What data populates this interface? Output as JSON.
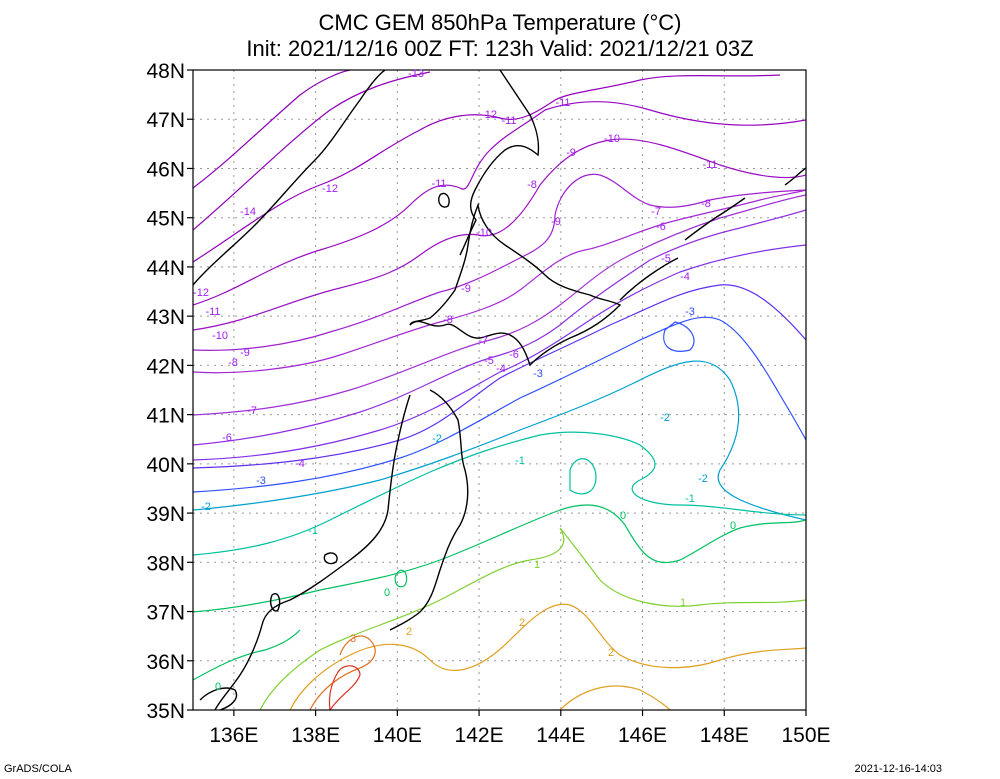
{
  "title": {
    "line1": "CMC GEM 850hPa Temperature (°C)",
    "line2": "Init: 2021/12/16 00Z  FT: 123h  Valid: 2021/12/21 03Z"
  },
  "footer": {
    "left": "GrADS/COLA",
    "right": "2021-12-16-14:03"
  },
  "axes": {
    "lat_labels": [
      "48N",
      "47N",
      "46N",
      "45N",
      "44N",
      "43N",
      "42N",
      "41N",
      "40N",
      "39N",
      "38N",
      "37N",
      "36N",
      "35N"
    ],
    "lon_labels": [
      "136E",
      "138E",
      "140E",
      "142E",
      "144E",
      "146E",
      "148E",
      "150E"
    ]
  },
  "contour_labels": [
    {
      "text": "-13",
      "c": "#a020f0"
    },
    {
      "text": "-11",
      "c": "#a020f0"
    },
    {
      "text": "-12",
      "c": "#a020f0"
    },
    {
      "text": "-11",
      "c": "#a020f0"
    },
    {
      "text": "-10",
      "c": "#a020f0"
    },
    {
      "text": "-9",
      "c": "#a020f0"
    },
    {
      "text": "-11",
      "c": "#a020f0"
    },
    {
      "text": "-8",
      "c": "#a020f0"
    },
    {
      "text": "-12",
      "c": "#a020f0"
    },
    {
      "text": "-11",
      "c": "#a020f0"
    },
    {
      "text": "-14",
      "c": "#a020f0"
    },
    {
      "text": "-9",
      "c": "#a020f0"
    },
    {
      "text": "-7",
      "c": "#a020f0"
    },
    {
      "text": "-8",
      "c": "#a020f0"
    },
    {
      "text": "-6",
      "c": "#a020f0"
    },
    {
      "text": "-10",
      "c": "#a020f0"
    },
    {
      "text": "-5",
      "c": "#a020f0"
    },
    {
      "text": "-4",
      "c": "#a020f0"
    },
    {
      "text": "-9",
      "c": "#a020f0"
    },
    {
      "text": "-12",
      "c": "#a020f0"
    },
    {
      "text": "-11",
      "c": "#a020f0"
    },
    {
      "text": "-8",
      "c": "#a020f0"
    },
    {
      "text": "-3",
      "c": "#3050ff"
    },
    {
      "text": "-10",
      "c": "#a020f0"
    },
    {
      "text": "-7",
      "c": "#a020f0"
    },
    {
      "text": "-6",
      "c": "#a020f0"
    },
    {
      "text": "-9",
      "c": "#a020f0"
    },
    {
      "text": "-5",
      "c": "#a020f0"
    },
    {
      "text": "-4",
      "c": "#a020f0"
    },
    {
      "text": "-8",
      "c": "#a020f0"
    },
    {
      "text": "-3",
      "c": "#3050ff"
    },
    {
      "text": "-7",
      "c": "#a020f0"
    },
    {
      "text": "-2",
      "c": "#00a0d0"
    },
    {
      "text": "-6",
      "c": "#a020f0"
    },
    {
      "text": "-2",
      "c": "#00a0d0"
    },
    {
      "text": "-1",
      "c": "#00c0a0"
    },
    {
      "text": "-4",
      "c": "#a020f0"
    },
    {
      "text": "-2",
      "c": "#00a0d0"
    },
    {
      "text": "-3",
      "c": "#3050ff"
    },
    {
      "text": "-1",
      "c": "#00c0a0"
    },
    {
      "text": "-2",
      "c": "#00a0d0"
    },
    {
      "text": "0",
      "c": "#00c060"
    },
    {
      "text": "0",
      "c": "#00c060"
    },
    {
      "text": "-1",
      "c": "#00c0a0"
    },
    {
      "text": "1",
      "c": "#80d030"
    },
    {
      "text": "0",
      "c": "#00c060"
    },
    {
      "text": "1",
      "c": "#80d030"
    },
    {
      "text": "2",
      "c": "#e0a020"
    },
    {
      "text": "2",
      "c": "#e0a020"
    },
    {
      "text": "3",
      "c": "#e07020"
    },
    {
      "text": "2",
      "c": "#e0a020"
    },
    {
      "text": "0",
      "c": "#00c060"
    }
  ],
  "colors": {
    "c_m14": "#8c00b4",
    "c_m13": "#9000b8",
    "c_m12": "#9400bc",
    "c_m11": "#9808c0",
    "c_m10": "#9a10c4",
    "c_m9": "#a020d0",
    "c_m8": "#a428d4",
    "c_m7": "#a030d8",
    "c_m6": "#9030e0",
    "c_m5": "#8030e8",
    "c_m4": "#6030f0",
    "c_m3": "#3050ff",
    "c_m2": "#00a0d0",
    "c_m1": "#00c0a0",
    "c_0": "#00c060",
    "c_1": "#80d030",
    "c_2": "#e0a020",
    "c_3": "#e07020",
    "c_4": "#e03020",
    "coast": "#000000",
    "grid": "#999999"
  }
}
